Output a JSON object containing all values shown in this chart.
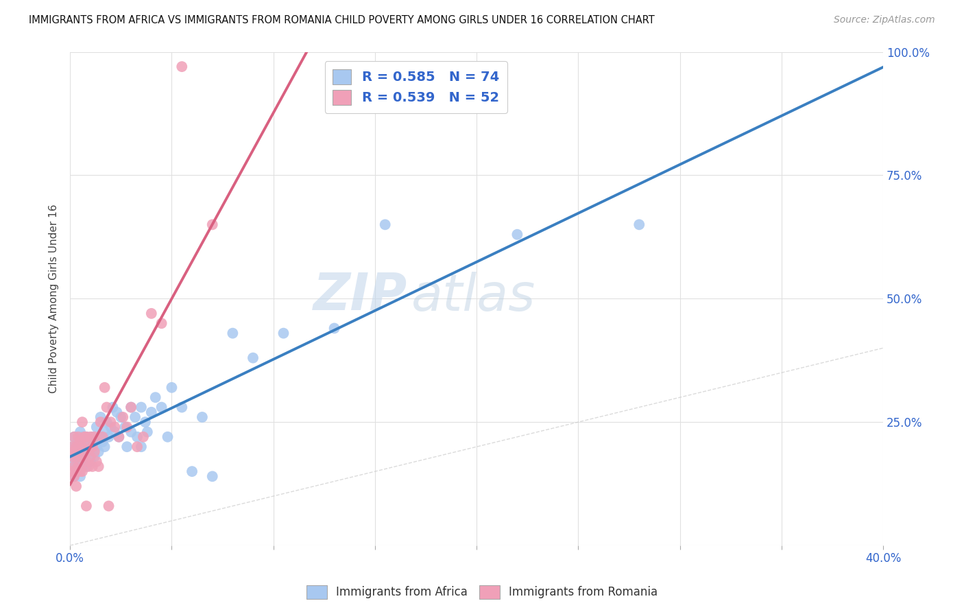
{
  "title": "IMMIGRANTS FROM AFRICA VS IMMIGRANTS FROM ROMANIA CHILD POVERTY AMONG GIRLS UNDER 16 CORRELATION CHART",
  "source": "Source: ZipAtlas.com",
  "ylabel": "Child Poverty Among Girls Under 16",
  "xlim": [
    0.0,
    0.4
  ],
  "ylim": [
    0.0,
    1.0
  ],
  "africa_color": "#a8c8f0",
  "romania_color": "#f0a0b8",
  "africa_R": 0.585,
  "africa_N": 74,
  "romania_R": 0.539,
  "romania_N": 52,
  "africa_line_color": "#3a7fc1",
  "romania_line_color": "#d96080",
  "diagonal_color": "#cccccc",
  "watermark_zip": "ZIP",
  "watermark_atlas": "atlas",
  "legend_color": "#3366cc",
  "africa_x": [
    0.001,
    0.001,
    0.002,
    0.002,
    0.002,
    0.003,
    0.003,
    0.003,
    0.003,
    0.004,
    0.004,
    0.004,
    0.005,
    0.005,
    0.005,
    0.005,
    0.006,
    0.006,
    0.006,
    0.007,
    0.007,
    0.008,
    0.008,
    0.008,
    0.009,
    0.009,
    0.01,
    0.01,
    0.011,
    0.011,
    0.012,
    0.012,
    0.013,
    0.013,
    0.014,
    0.015,
    0.015,
    0.016,
    0.017,
    0.017,
    0.018,
    0.019,
    0.02,
    0.021,
    0.022,
    0.023,
    0.024,
    0.025,
    0.027,
    0.028,
    0.03,
    0.03,
    0.032,
    0.033,
    0.035,
    0.035,
    0.037,
    0.038,
    0.04,
    0.042,
    0.045,
    0.048,
    0.05,
    0.055,
    0.06,
    0.065,
    0.07,
    0.08,
    0.09,
    0.105,
    0.13,
    0.155,
    0.22,
    0.28
  ],
  "africa_y": [
    0.17,
    0.2,
    0.14,
    0.18,
    0.22,
    0.15,
    0.19,
    0.2,
    0.16,
    0.18,
    0.21,
    0.17,
    0.14,
    0.18,
    0.2,
    0.23,
    0.16,
    0.19,
    0.22,
    0.17,
    0.2,
    0.16,
    0.19,
    0.22,
    0.18,
    0.21,
    0.17,
    0.2,
    0.19,
    0.22,
    0.18,
    0.21,
    0.2,
    0.24,
    0.19,
    0.22,
    0.26,
    0.21,
    0.23,
    0.2,
    0.25,
    0.22,
    0.24,
    0.28,
    0.23,
    0.27,
    0.22,
    0.26,
    0.24,
    0.2,
    0.28,
    0.23,
    0.26,
    0.22,
    0.2,
    0.28,
    0.25,
    0.23,
    0.27,
    0.3,
    0.28,
    0.22,
    0.32,
    0.28,
    0.15,
    0.26,
    0.14,
    0.43,
    0.38,
    0.43,
    0.44,
    0.65,
    0.63,
    0.65
  ],
  "romania_x": [
    0.001,
    0.001,
    0.001,
    0.002,
    0.002,
    0.002,
    0.002,
    0.003,
    0.003,
    0.003,
    0.003,
    0.004,
    0.004,
    0.004,
    0.005,
    0.005,
    0.005,
    0.006,
    0.006,
    0.006,
    0.007,
    0.007,
    0.008,
    0.008,
    0.008,
    0.009,
    0.009,
    0.01,
    0.01,
    0.011,
    0.011,
    0.012,
    0.012,
    0.013,
    0.014,
    0.015,
    0.016,
    0.017,
    0.018,
    0.019,
    0.02,
    0.022,
    0.024,
    0.026,
    0.028,
    0.03,
    0.033,
    0.036,
    0.04,
    0.045,
    0.055,
    0.07
  ],
  "romania_y": [
    0.15,
    0.18,
    0.2,
    0.14,
    0.16,
    0.19,
    0.22,
    0.15,
    0.18,
    0.2,
    0.12,
    0.16,
    0.19,
    0.22,
    0.15,
    0.18,
    0.21,
    0.15,
    0.2,
    0.25,
    0.18,
    0.22,
    0.17,
    0.22,
    0.08,
    0.16,
    0.2,
    0.18,
    0.22,
    0.2,
    0.16,
    0.22,
    0.19,
    0.17,
    0.16,
    0.25,
    0.22,
    0.32,
    0.28,
    0.08,
    0.25,
    0.24,
    0.22,
    0.26,
    0.24,
    0.28,
    0.2,
    0.22,
    0.47,
    0.45,
    0.97,
    0.65
  ]
}
